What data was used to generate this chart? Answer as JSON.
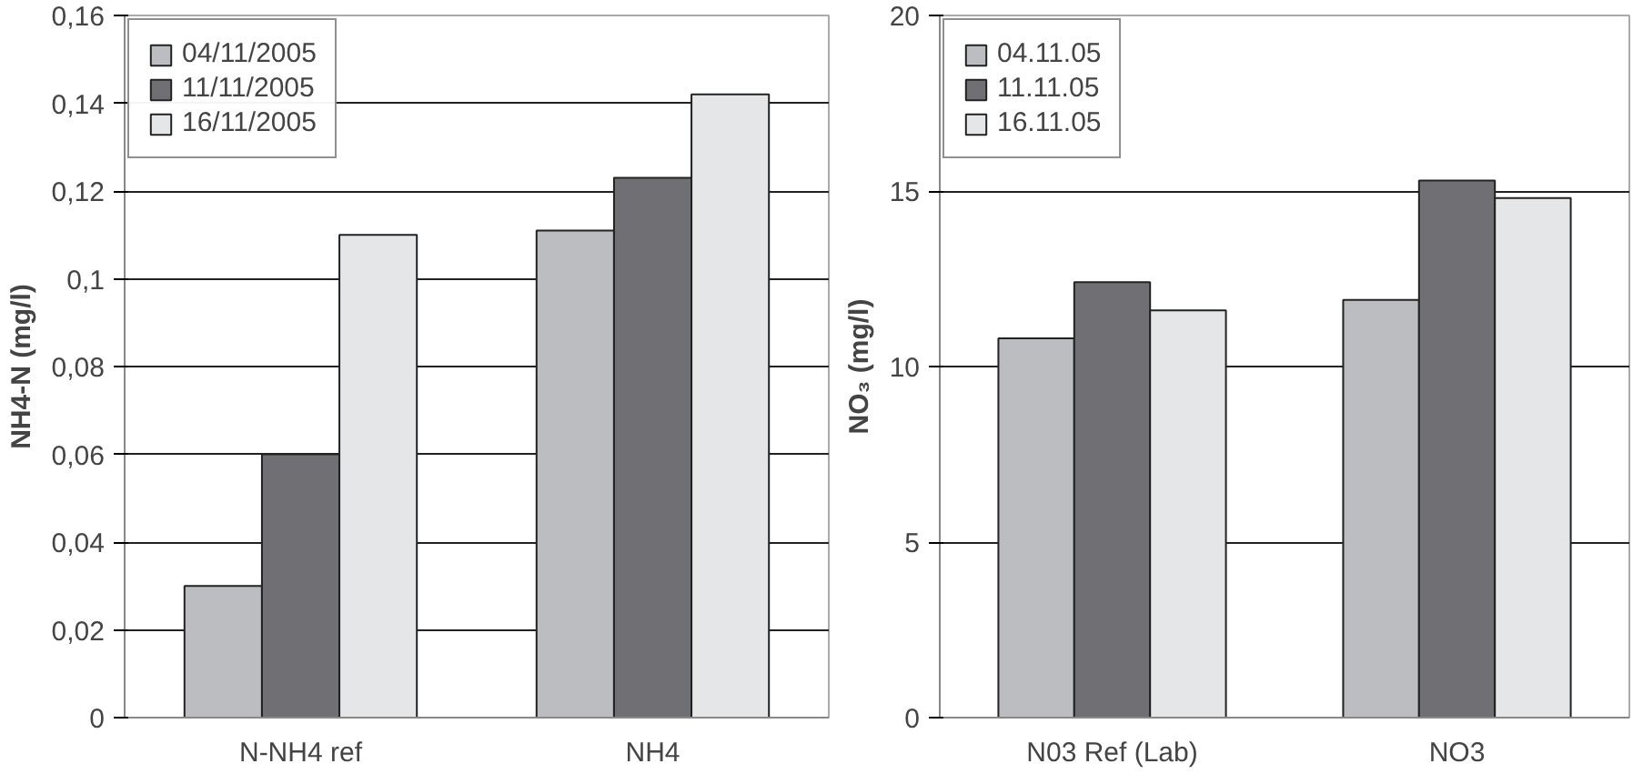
{
  "chart_data": [
    {
      "type": "bar",
      "ylabel": "NH4-N (mg/l)",
      "categories": [
        "N-NH4 ref",
        "NH4"
      ],
      "series": [
        {
          "name": "04/11/2005",
          "color": "#bcbdc1",
          "values": [
            0.03,
            0.111
          ]
        },
        {
          "name": "11/11/2005",
          "color": "#707074",
          "values": [
            0.06,
            0.123
          ]
        },
        {
          "name": "16/11/2005",
          "color": "#e5e6e8",
          "values": [
            0.11,
            0.142
          ]
        }
      ],
      "ylim": [
        0,
        0.16
      ],
      "yticks": [
        0,
        {
          "value": 0.02,
          "label": "0,02"
        },
        {
          "value": 0.04,
          "label": "0,04"
        },
        {
          "value": 0.06,
          "label": "0,06"
        },
        {
          "value": 0.08,
          "label": "0,08"
        },
        {
          "value": 0.1,
          "label": "0,1"
        },
        {
          "value": 0.12,
          "label": "0,12"
        },
        {
          "value": 0.14,
          "label": "0,14"
        },
        {
          "value": 0.16,
          "label": "0,16"
        }
      ],
      "grid": "y",
      "legend": "top left"
    },
    {
      "type": "bar",
      "ylabel": "NO₃ (mg/l)",
      "categories": [
        "N03 Ref (Lab)",
        "NO3"
      ],
      "series": [
        {
          "name": "04.11.05",
          "color": "#bcbdc1",
          "values": [
            10.8,
            11.9
          ]
        },
        {
          "name": "11.11.05",
          "color": "#707074",
          "values": [
            12.4,
            15.3
          ]
        },
        {
          "name": "16.11.05",
          "color": "#e5e6e8",
          "values": [
            11.6,
            14.8
          ]
        }
      ],
      "ylim": [
        0,
        20
      ],
      "yticks": [
        0,
        5,
        10,
        15,
        20
      ],
      "grid": "y",
      "legend": "top left"
    }
  ]
}
